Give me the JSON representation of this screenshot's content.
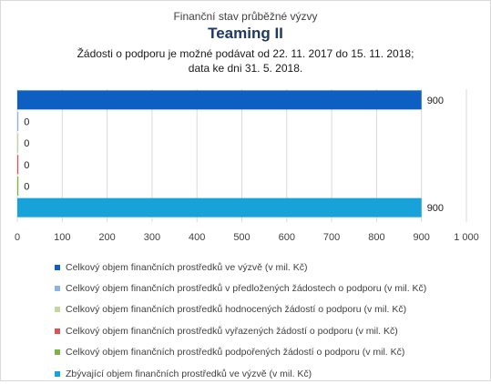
{
  "header": {
    "top_line": "Finanční stav průběžné výzvy",
    "title": "Teaming II",
    "note_line1": "Žádosti o podporu je možné  podávat od 22. 11. 2017 do 15. 11. 2018;",
    "note_line2": "data ke dni 31. 5. 2018."
  },
  "chart_data": {
    "type": "bar",
    "orientation": "horizontal",
    "xlim": [
      0,
      1000
    ],
    "xticks": [
      0,
      100,
      200,
      300,
      400,
      500,
      600,
      700,
      800,
      900,
      1000
    ],
    "xtick_labels": [
      "0",
      "100",
      "200",
      "300",
      "400",
      "500",
      "600",
      "700",
      "800",
      "900",
      "1 000"
    ],
    "grid": true,
    "legend_position": "bottom",
    "series": [
      {
        "name": "Celkový objem finančních prostředků ve výzvě (v mil. Kč)",
        "value": 900,
        "label": "900",
        "color": "#0e5fc2"
      },
      {
        "name": "Celkový objem finančních prostředků v předložených žádostech o podporu (v mil. Kč)",
        "value": 0,
        "label": "0",
        "color": "#8db3e2"
      },
      {
        "name": "Celkový objem finančních prostředků hodnocených žádostí o podporu (v mil. Kč)",
        "value": 0,
        "label": "0",
        "color": "#c4d79b"
      },
      {
        "name": "Celkový objem finančních prostředků vyřazených žádostí o podporu (v mil. Kč)",
        "value": 0,
        "label": "0",
        "color": "#e05252"
      },
      {
        "name": "Celkový objem finančních prostředků podpořených žádostí o podporu (v mil. Kč)",
        "value": 0,
        "label": "0",
        "color": "#7cb342"
      },
      {
        "name": "Zbývající objem finančních prostředků ve výzvě (v mil. Kč)",
        "value": 900,
        "label": "900",
        "color": "#17a3d9"
      }
    ]
  }
}
